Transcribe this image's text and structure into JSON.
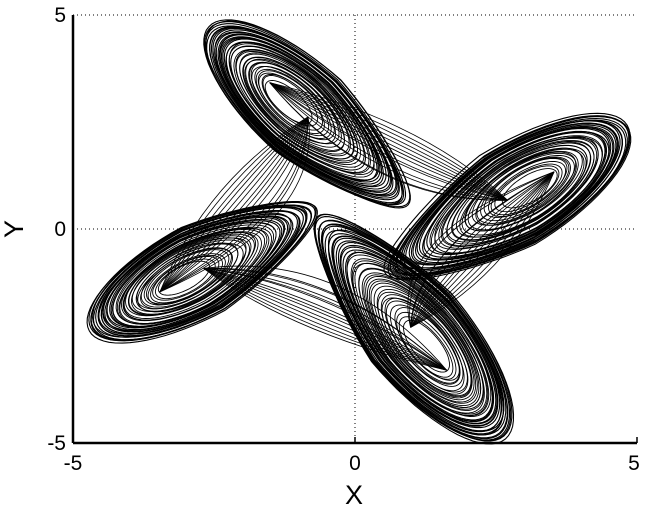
{
  "chart_data": {
    "type": "line",
    "title": "",
    "xlabel": "X",
    "ylabel": "Y",
    "xlim": [
      -5,
      5
    ],
    "ylim": [
      -5,
      5
    ],
    "xticks": [
      "-5",
      "0",
      "5"
    ],
    "yticks": [
      "-5",
      "0",
      "5"
    ],
    "grid": "dotted at 0 and 5",
    "line_color": "#000000",
    "description_shape": "four-wing attractor phase portrait",
    "wings": [
      {
        "hole_center": [
          -1.24,
          3.1
        ],
        "tip": [
          -2.6,
          4.7
        ]
      },
      {
        "hole_center": [
          3.2,
          1.07
        ],
        "tip": [
          4.85,
          2.4
        ]
      },
      {
        "hole_center": [
          1.37,
          -2.9
        ],
        "tip": [
          2.65,
          -4.9
        ]
      },
      {
        "hole_center": [
          -3.15,
          -1.25
        ],
        "tip": [
          -4.7,
          -2.35
        ]
      }
    ]
  }
}
